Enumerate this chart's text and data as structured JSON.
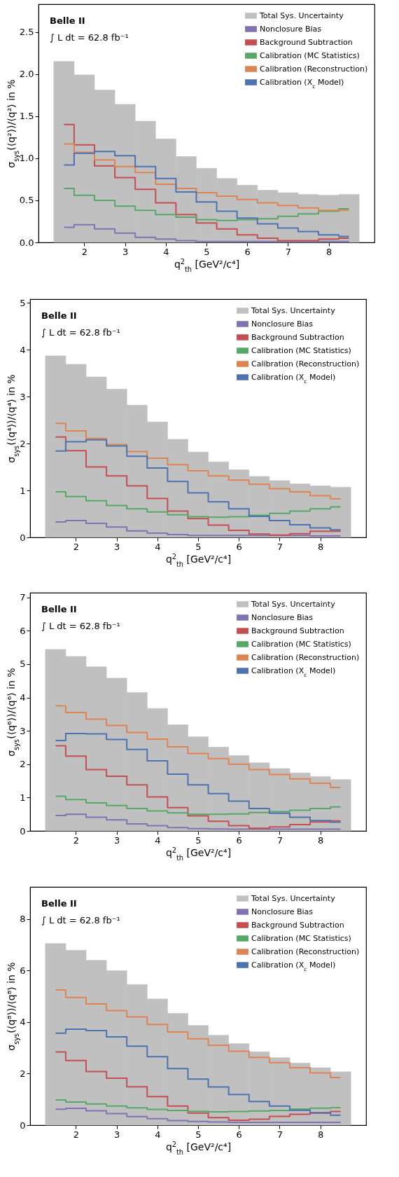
{
  "chart_data": [
    {
      "type": "histogram",
      "xlabel": "q$^{2}$$_{th}$ [GeV²/c⁴]",
      "ylabel": "σ$_{sys}$(⟨q²⟩)/⟨q²⟩ in %",
      "annotations": [
        "Belle II",
        "∫ L dt  =  62.8 fb⁻¹"
      ],
      "bins": [
        1.25,
        1.75,
        2.25,
        2.75,
        3.25,
        3.75,
        4.25,
        4.75,
        5.25,
        5.75,
        6.25,
        6.75,
        7.25,
        7.75,
        8.25,
        8.75
      ],
      "xlim": [
        0.875,
        9.125
      ],
      "xticks": [
        2,
        3,
        4,
        5,
        6,
        7,
        8
      ],
      "ylim": [
        0,
        2.83
      ],
      "yticks": [
        {
          "value": 0,
          "label": "0.0"
        },
        0.5,
        {
          "value": 1,
          "label": "1.0"
        },
        1.5,
        {
          "value": 2,
          "label": "2.0"
        },
        2.5
      ],
      "legend": "top right",
      "series": [
        {
          "name": "Total Sys. Uncertainty",
          "color": "#c0c0c0",
          "values": [
            2.15,
            1.99,
            1.81,
            1.64,
            1.44,
            1.23,
            1.02,
            0.88,
            0.76,
            0.68,
            0.62,
            0.59,
            0.57,
            0.56,
            0.57
          ]
        },
        {
          "name": "Nonclosure Bias",
          "type": "step",
          "color": "#8172b3",
          "x": [
            1.5,
            2,
            2.5,
            3,
            3.5,
            4,
            4.5,
            5,
            5.5,
            6,
            6.5,
            7,
            7.5,
            8,
            8.5
          ],
          "values": [
            0.18,
            0.21,
            0.16,
            0.11,
            0.06,
            0.04,
            0.02,
            0.01,
            0.01,
            0.01,
            0.01,
            0.01,
            0.01,
            0.01,
            0.01
          ]
        },
        {
          "name": "Background Subtraction",
          "type": "step",
          "color": "#c44e52",
          "x": [
            1.5,
            2,
            2.5,
            3,
            3.5,
            4,
            4.5,
            5,
            5.5,
            6,
            6.5,
            7,
            7.5,
            8,
            8.5
          ],
          "values": [
            1.4,
            1.16,
            0.91,
            0.77,
            0.63,
            0.47,
            0.33,
            0.23,
            0.16,
            0.09,
            0.05,
            0.02,
            0.02,
            0.04,
            0.05
          ]
        },
        {
          "name": "Calibration (MC Statistics)",
          "type": "step",
          "color": "#55a868",
          "x": [
            1.5,
            2,
            2.5,
            3,
            3.5,
            4,
            4.5,
            5,
            5.5,
            6,
            6.5,
            7,
            7.5,
            8,
            8.5
          ],
          "values": [
            0.64,
            0.56,
            0.5,
            0.43,
            0.38,
            0.33,
            0.3,
            0.27,
            0.26,
            0.27,
            0.28,
            0.31,
            0.34,
            0.37,
            0.4
          ]
        },
        {
          "name": "Calibration (Reconstruction)",
          "type": "step",
          "color": "#dd8452",
          "x": [
            1.5,
            2,
            2.5,
            3,
            3.5,
            4,
            4.5,
            5,
            5.5,
            6,
            6.5,
            7,
            7.5,
            8,
            8.5
          ],
          "values": [
            1.17,
            1.07,
            0.98,
            0.9,
            0.83,
            0.69,
            0.64,
            0.59,
            0.55,
            0.51,
            0.47,
            0.44,
            0.41,
            0.38,
            0.38
          ]
        },
        {
          "name": "Calibration (X$_{c}$ Model)",
          "type": "step",
          "color": "#4c72b0",
          "x": [
            1.5,
            2,
            2.5,
            3,
            3.5,
            4,
            4.5,
            5,
            5.5,
            6,
            6.5,
            7,
            7.5,
            8,
            8.5
          ],
          "values": [
            0.92,
            1.06,
            1.08,
            1.03,
            0.9,
            0.76,
            0.6,
            0.48,
            0.37,
            0.29,
            0.22,
            0.17,
            0.13,
            0.09,
            0.07
          ]
        }
      ]
    },
    {
      "type": "histogram",
      "xlabel": "q$^{2}$$_{th}$ [GeV²/c⁴]",
      "ylabel": "σ$_{sys}$(⟨q⁴⟩)/⟨q⁴⟩ in %",
      "annotations": [
        "Belle II",
        "∫ L dt  =  62.8 fb⁻¹"
      ],
      "bins": [
        1.25,
        1.75,
        2.25,
        2.75,
        3.25,
        3.75,
        4.25,
        4.75,
        5.25,
        5.75,
        6.25,
        6.75,
        7.25,
        7.75,
        8.25,
        8.75
      ],
      "xlim": [
        0.875,
        9.125
      ],
      "xticks": [
        2,
        3,
        4,
        5,
        6,
        7,
        8
      ],
      "ylim": [
        0,
        5.08
      ],
      "yticks": [
        0,
        1,
        2,
        3,
        4,
        5
      ],
      "legend": "top right",
      "series": [
        {
          "name": "Total Sys. Uncertainty",
          "color": "#c0c0c0",
          "values": [
            3.87,
            3.69,
            3.42,
            3.16,
            2.82,
            2.46,
            2.09,
            1.82,
            1.61,
            1.44,
            1.3,
            1.21,
            1.14,
            1.1,
            1.07
          ]
        },
        {
          "name": "Nonclosure Bias",
          "type": "step",
          "color": "#8172b3",
          "x": [
            1.5,
            2,
            2.5,
            3,
            3.5,
            4,
            4.5,
            5,
            5.5,
            6,
            6.5,
            7,
            7.5,
            8,
            8.5
          ],
          "values": [
            0.33,
            0.36,
            0.3,
            0.22,
            0.14,
            0.09,
            0.06,
            0.04,
            0.04,
            0.04,
            0.04,
            0.04,
            0.04,
            0.03,
            0.03
          ]
        },
        {
          "name": "Background Subtraction",
          "type": "step",
          "color": "#c44e52",
          "x": [
            1.5,
            2,
            2.5,
            3,
            3.5,
            4,
            4.5,
            5,
            5.5,
            6,
            6.5,
            7,
            7.5,
            8,
            8.5
          ],
          "values": [
            2.14,
            1.85,
            1.5,
            1.31,
            1.1,
            0.83,
            0.56,
            0.4,
            0.26,
            0.15,
            0.07,
            0.05,
            0.08,
            0.13,
            0.13
          ]
        },
        {
          "name": "Calibration (MC Statistics)",
          "type": "step",
          "color": "#55a868",
          "x": [
            1.5,
            2,
            2.5,
            3,
            3.5,
            4,
            4.5,
            5,
            5.5,
            6,
            6.5,
            7,
            7.5,
            8,
            8.5
          ],
          "values": [
            0.97,
            0.87,
            0.78,
            0.68,
            0.61,
            0.54,
            0.48,
            0.44,
            0.43,
            0.44,
            0.47,
            0.51,
            0.56,
            0.61,
            0.65
          ]
        },
        {
          "name": "Calibration (Reconstruction)",
          "type": "step",
          "color": "#dd8452",
          "x": [
            1.5,
            2,
            2.5,
            3,
            3.5,
            4,
            4.5,
            5,
            5.5,
            6,
            6.5,
            7,
            7.5,
            8,
            8.5
          ],
          "values": [
            2.43,
            2.27,
            2.11,
            1.98,
            1.83,
            1.69,
            1.55,
            1.42,
            1.31,
            1.22,
            1.13,
            1.04,
            0.97,
            0.89,
            0.82
          ]
        },
        {
          "name": "Calibration (X$_{c}$ Model)",
          "type": "step",
          "color": "#4c72b0",
          "x": [
            1.5,
            2,
            2.5,
            3,
            3.5,
            4,
            4.5,
            5,
            5.5,
            6,
            6.5,
            7,
            7.5,
            8,
            8.5
          ],
          "values": [
            1.84,
            2.04,
            2.08,
            1.95,
            1.73,
            1.48,
            1.19,
            0.95,
            0.76,
            0.61,
            0.45,
            0.36,
            0.27,
            0.2,
            0.16
          ]
        }
      ]
    },
    {
      "type": "histogram",
      "xlabel": "q$^{2}$$_{th}$ [GeV²/c⁴]",
      "ylabel": "σ$_{sys}$(⟨q⁶⟩)/⟨q⁶⟩ in %",
      "annotations": [
        "Belle II",
        "∫ L dt  =  62.8 fb⁻¹"
      ],
      "bins": [
        1.25,
        1.75,
        2.25,
        2.75,
        3.25,
        3.75,
        4.25,
        4.75,
        5.25,
        5.75,
        6.25,
        6.75,
        7.25,
        7.75,
        8.25,
        8.75
      ],
      "xlim": [
        0.875,
        9.125
      ],
      "xticks": [
        2,
        3,
        4,
        5,
        6,
        7,
        8
      ],
      "ylim": [
        0,
        7.14
      ],
      "yticks": [
        0,
        1,
        2,
        3,
        4,
        5,
        6,
        7
      ],
      "legend": "top right",
      "series": [
        {
          "name": "Total Sys. Uncertainty",
          "color": "#c0c0c0",
          "values": [
            5.44,
            5.23,
            4.92,
            4.58,
            4.15,
            3.67,
            3.18,
            2.82,
            2.51,
            2.26,
            2.04,
            1.87,
            1.74,
            1.63,
            1.54
          ]
        },
        {
          "name": "Nonclosure Bias",
          "type": "step",
          "color": "#8172b3",
          "x": [
            1.5,
            2,
            2.5,
            3,
            3.5,
            4,
            4.5,
            5,
            5.5,
            6,
            6.5,
            7,
            7.5,
            8,
            8.5
          ],
          "values": [
            0.46,
            0.5,
            0.41,
            0.33,
            0.21,
            0.16,
            0.1,
            0.07,
            0.06,
            0.05,
            0.05,
            0.05,
            0.05,
            0.05,
            0.05
          ]
        },
        {
          "name": "Background Subtraction",
          "type": "step",
          "color": "#c44e52",
          "x": [
            1.5,
            2,
            2.5,
            3,
            3.5,
            4,
            4.5,
            5,
            5.5,
            6,
            6.5,
            7,
            7.5,
            8,
            8.5
          ],
          "values": [
            2.55,
            2.24,
            1.84,
            1.64,
            1.38,
            1.02,
            0.7,
            0.45,
            0.29,
            0.16,
            0.08,
            0.12,
            0.19,
            0.27,
            0.3
          ]
        },
        {
          "name": "Calibration (MC Statistics)",
          "type": "step",
          "color": "#55a868",
          "x": [
            1.5,
            2,
            2.5,
            3,
            3.5,
            4,
            4.5,
            5,
            5.5,
            6,
            6.5,
            7,
            7.5,
            8,
            8.5
          ],
          "values": [
            1.04,
            0.94,
            0.84,
            0.76,
            0.67,
            0.6,
            0.54,
            0.5,
            0.5,
            0.51,
            0.55,
            0.58,
            0.62,
            0.67,
            0.72
          ]
        },
        {
          "name": "Calibration (Reconstruction)",
          "type": "step",
          "color": "#dd8452",
          "x": [
            1.5,
            2,
            2.5,
            3,
            3.5,
            4,
            4.5,
            5,
            5.5,
            6,
            6.5,
            7,
            7.5,
            8,
            8.5
          ],
          "values": [
            3.75,
            3.55,
            3.35,
            3.16,
            2.95,
            2.75,
            2.52,
            2.32,
            2.17,
            2.0,
            1.84,
            1.69,
            1.56,
            1.43,
            1.3
          ]
        },
        {
          "name": "Calibration (X$_{c}$ Model)",
          "type": "step",
          "color": "#4c72b0",
          "x": [
            1.5,
            2,
            2.5,
            3,
            3.5,
            4,
            4.5,
            5,
            5.5,
            6,
            6.5,
            7,
            7.5,
            8,
            8.5
          ],
          "values": [
            2.71,
            2.92,
            2.91,
            2.74,
            2.44,
            2.1,
            1.7,
            1.38,
            1.12,
            0.89,
            0.67,
            0.53,
            0.41,
            0.31,
            0.26
          ]
        }
      ]
    },
    {
      "type": "histogram",
      "xlabel": "q$^{2}$$_{th}$ [GeV²/c⁴]",
      "ylabel": "σ$_{sys}$(⟨q⁸⟩)/⟨q⁸⟩ in %",
      "annotations": [
        "Belle II",
        "∫ L dt  =  62.8 fb⁻¹"
      ],
      "bins": [
        1.25,
        1.75,
        2.25,
        2.75,
        3.25,
        3.75,
        4.25,
        4.75,
        5.25,
        5.75,
        6.25,
        6.75,
        7.25,
        7.75,
        8.25,
        8.75
      ],
      "xlim": [
        0.875,
        9.125
      ],
      "xticks": [
        2,
        3,
        4,
        5,
        6,
        7,
        8
      ],
      "ylim": [
        0,
        9.25
      ],
      "yticks": [
        0,
        2,
        4,
        6,
        8
      ],
      "legend": "top right",
      "series": [
        {
          "name": "Total Sys. Uncertainty",
          "color": "#c0c0c0",
          "values": [
            7.05,
            6.79,
            6.4,
            6.0,
            5.46,
            4.9,
            4.34,
            3.87,
            3.49,
            3.16,
            2.85,
            2.62,
            2.41,
            2.23,
            2.07
          ]
        },
        {
          "name": "Nonclosure Bias",
          "type": "step",
          "color": "#8172b3",
          "x": [
            1.5,
            2,
            2.5,
            3,
            3.5,
            4,
            4.5,
            5,
            5.5,
            6,
            6.5,
            7,
            7.5,
            8,
            8.5
          ],
          "values": [
            0.62,
            0.65,
            0.56,
            0.45,
            0.33,
            0.25,
            0.18,
            0.14,
            0.12,
            0.11,
            0.11,
            0.11,
            0.11,
            0.11,
            0.11
          ]
        },
        {
          "name": "Background Subtraction",
          "type": "step",
          "color": "#c44e52",
          "x": [
            1.5,
            2,
            2.5,
            3,
            3.5,
            4,
            4.5,
            5,
            5.5,
            6,
            6.5,
            7,
            7.5,
            8,
            8.5
          ],
          "values": [
            2.84,
            2.51,
            2.08,
            1.82,
            1.49,
            1.11,
            0.74,
            0.47,
            0.29,
            0.19,
            0.23,
            0.34,
            0.42,
            0.47,
            0.53
          ]
        },
        {
          "name": "Calibration (MC Statistics)",
          "type": "step",
          "color": "#55a868",
          "x": [
            1.5,
            2,
            2.5,
            3,
            3.5,
            4,
            4.5,
            5,
            5.5,
            6,
            6.5,
            7,
            7.5,
            8,
            8.5
          ],
          "values": [
            0.98,
            0.9,
            0.82,
            0.74,
            0.67,
            0.61,
            0.57,
            0.54,
            0.52,
            0.53,
            0.55,
            0.57,
            0.62,
            0.66,
            0.68
          ]
        },
        {
          "name": "Calibration (Reconstruction)",
          "type": "step",
          "color": "#dd8452",
          "x": [
            1.5,
            2,
            2.5,
            3,
            3.5,
            4,
            4.5,
            5,
            5.5,
            6,
            6.5,
            7,
            7.5,
            8,
            8.5
          ],
          "values": [
            5.25,
            4.96,
            4.71,
            4.45,
            4.2,
            3.91,
            3.62,
            3.35,
            3.1,
            2.87,
            2.63,
            2.43,
            2.23,
            2.03,
            1.85
          ]
        },
        {
          "name": "Calibration (X$_{c}$ Model)",
          "type": "step",
          "color": "#4c72b0",
          "x": [
            1.5,
            2,
            2.5,
            3,
            3.5,
            4,
            4.5,
            5,
            5.5,
            6,
            6.5,
            7,
            7.5,
            8,
            8.5
          ],
          "values": [
            3.57,
            3.73,
            3.67,
            3.43,
            3.07,
            2.66,
            2.2,
            1.79,
            1.48,
            1.19,
            0.92,
            0.74,
            0.58,
            0.48,
            0.39
          ]
        }
      ]
    }
  ]
}
